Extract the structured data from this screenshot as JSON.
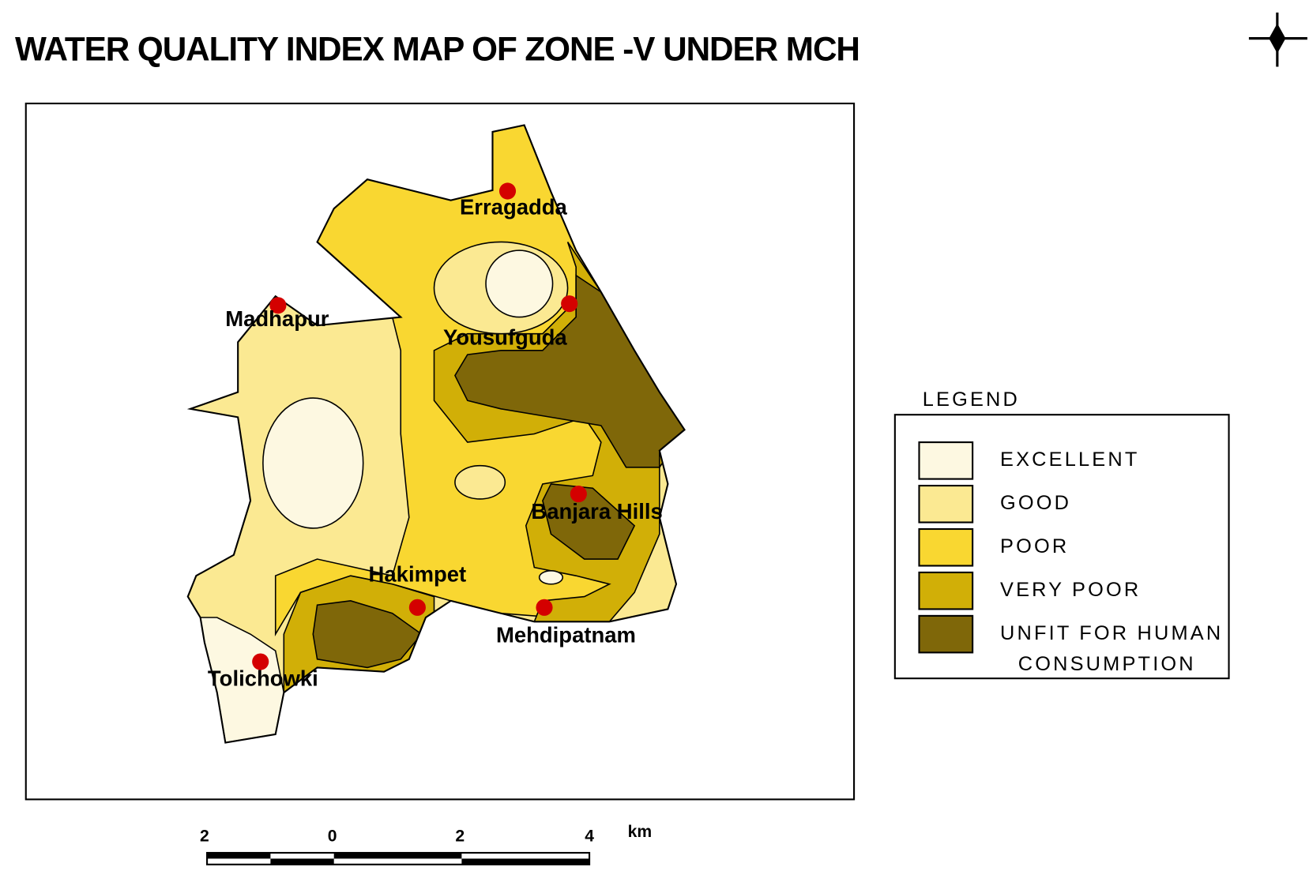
{
  "title": "WATER QUALITY INDEX MAP OF ZONE -V UNDER MCH",
  "places": [
    "Erragadda",
    "Madhapur",
    "Yousufguda",
    "Banjara Hills",
    "Hakimpet",
    "Mehdipatnam",
    "Tolichowki"
  ],
  "legend": {
    "title": "LEGEND",
    "items": [
      {
        "label_lines": [
          "EXCELLENT"
        ],
        "color": "#fdf8e1"
      },
      {
        "label_lines": [
          "GOOD"
        ],
        "color": "#fbe992"
      },
      {
        "label_lines": [
          "POOR"
        ],
        "color": "#f9d731"
      },
      {
        "label_lines": [
          "VERY POOR"
        ],
        "color": "#d1af07"
      },
      {
        "label_lines": [
          "UNFIT FOR HUMAN",
          "CONSUMPTION"
        ],
        "color": "#7f6709"
      }
    ]
  },
  "scale": {
    "labels": [
      "2",
      "0",
      "2",
      "4"
    ],
    "unit": "km"
  }
}
